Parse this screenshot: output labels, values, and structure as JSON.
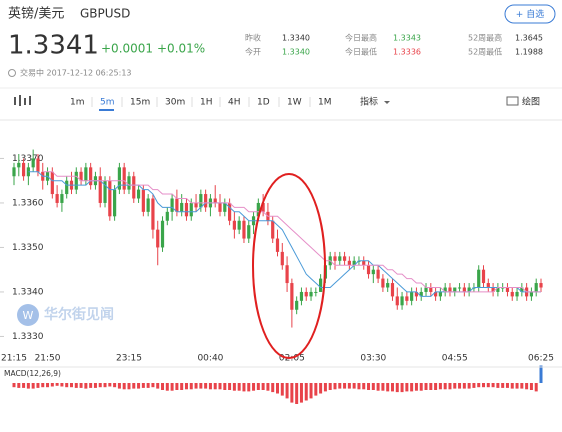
{
  "header": {
    "name": "英镑/美元",
    "symbol": "GBPUSD",
    "watch_button": "+ 自选",
    "price": "1.3341",
    "change": "+0.0001",
    "change_pct": "+0.01%",
    "stats": [
      [
        "昨收",
        "1.3340"
      ],
      [
        "今开",
        "1.3340"
      ],
      [
        "今日最高",
        "1.3343"
      ],
      [
        "今日最低",
        "1.3336"
      ],
      [
        "52周最高",
        "1.3645"
      ],
      [
        "52周最低",
        "1.1988"
      ]
    ],
    "status": "交易中 2017-12-12 06:25:13"
  },
  "toolbar": {
    "intervals": [
      "1m",
      "5m",
      "15m",
      "30m",
      "1H",
      "4H",
      "1D",
      "1W",
      "1M"
    ],
    "selected": "5m",
    "indicators": "指标",
    "draw": "绘图"
  },
  "watermark": "华尔街见闻",
  "chart_data": {
    "type": "candlestick",
    "up_color": "#3aa54a",
    "down_color": "#e8434a",
    "categories": [
      "21:15",
      null,
      null,
      null,
      null,
      null,
      null,
      "21:50",
      null,
      null,
      null,
      null,
      null,
      null,
      null,
      null,
      null,
      null,
      null,
      null,
      null,
      null,
      null,
      null,
      "23:15",
      null,
      null,
      null,
      null,
      null,
      null,
      null,
      null,
      null,
      null,
      null,
      null,
      null,
      null,
      null,
      null,
      "00:40",
      null,
      null,
      null,
      null,
      null,
      null,
      null,
      null,
      null,
      null,
      null,
      null,
      null,
      null,
      null,
      null,
      "02:05",
      null,
      null,
      null,
      null,
      null,
      null,
      null,
      null,
      null,
      null,
      null,
      null,
      null,
      null,
      null,
      null,
      "03:30",
      null,
      null,
      null,
      null,
      null,
      null,
      null,
      null,
      null,
      null,
      null,
      null,
      null,
      null,
      null,
      null,
      "04:55",
      null,
      null,
      null,
      null,
      null,
      null,
      null,
      null,
      null,
      null,
      null,
      null,
      null,
      null,
      null,
      null,
      null,
      "06:25"
    ],
    "ohlc": [
      [
        1.3366,
        1.3369,
        1.3364,
        1.3368
      ],
      [
        1.3368,
        1.3371,
        1.3366,
        1.3369
      ],
      [
        1.3369,
        1.337,
        1.3365,
        1.3366
      ],
      [
        1.3366,
        1.3369,
        1.3364,
        1.3368
      ],
      [
        1.3368,
        1.3372,
        1.3367,
        1.337
      ],
      [
        1.337,
        1.3371,
        1.3366,
        1.3367
      ],
      [
        1.3367,
        1.3369,
        1.3363,
        1.3365
      ],
      [
        1.3365,
        1.3368,
        1.3364,
        1.3367
      ],
      [
        1.3367,
        1.3368,
        1.3361,
        1.3362
      ],
      [
        1.3362,
        1.3364,
        1.3359,
        1.336
      ],
      [
        1.336,
        1.3363,
        1.3358,
        1.3362
      ],
      [
        1.3362,
        1.3366,
        1.3361,
        1.3365
      ],
      [
        1.3365,
        1.3367,
        1.3362,
        1.3363
      ],
      [
        1.3363,
        1.3368,
        1.3362,
        1.3367
      ],
      [
        1.3367,
        1.3368,
        1.3364,
        1.3365
      ],
      [
        1.3365,
        1.3369,
        1.3364,
        1.3368
      ],
      [
        1.3368,
        1.3369,
        1.3363,
        1.3364
      ],
      [
        1.3364,
        1.3367,
        1.3363,
        1.3366
      ],
      [
        1.3366,
        1.3368,
        1.3359,
        1.336
      ],
      [
        1.336,
        1.3366,
        1.3359,
        1.3365
      ],
      [
        1.3365,
        1.3366,
        1.3356,
        1.3357
      ],
      [
        1.3357,
        1.3364,
        1.3356,
        1.3363
      ],
      [
        1.3363,
        1.3369,
        1.3362,
        1.3368
      ],
      [
        1.3368,
        1.3369,
        1.3362,
        1.3363
      ],
      [
        1.3363,
        1.3367,
        1.3362,
        1.3366
      ],
      [
        1.3366,
        1.3367,
        1.336,
        1.3361
      ],
      [
        1.3361,
        1.3364,
        1.336,
        1.3363
      ],
      [
        1.3363,
        1.3364,
        1.3357,
        1.3358
      ],
      [
        1.3358,
        1.3362,
        1.3357,
        1.3361
      ],
      [
        1.3361,
        1.3362,
        1.3352,
        1.3354
      ],
      [
        1.3354,
        1.3356,
        1.3346,
        1.335
      ],
      [
        1.335,
        1.3357,
        1.3349,
        1.3356
      ],
      [
        1.3356,
        1.3359,
        1.3355,
        1.3358
      ],
      [
        1.3358,
        1.3362,
        1.3356,
        1.3361
      ],
      [
        1.3361,
        1.3363,
        1.3357,
        1.3358
      ],
      [
        1.3358,
        1.3362,
        1.3357,
        1.336
      ],
      [
        1.336,
        1.3361,
        1.3356,
        1.3357
      ],
      [
        1.3357,
        1.3361,
        1.3356,
        1.336
      ],
      [
        1.336,
        1.3362,
        1.3358,
        1.3359
      ],
      [
        1.3359,
        1.3363,
        1.3358,
        1.3362
      ],
      [
        1.3362,
        1.3363,
        1.3358,
        1.3359
      ],
      [
        1.3359,
        1.3362,
        1.3357,
        1.3361
      ],
      [
        1.3361,
        1.3364,
        1.3359,
        1.336
      ],
      [
        1.336,
        1.3362,
        1.3357,
        1.3358
      ],
      [
        1.3358,
        1.3361,
        1.3357,
        1.336
      ],
      [
        1.336,
        1.3361,
        1.3355,
        1.3356
      ],
      [
        1.3356,
        1.3358,
        1.3352,
        1.3354
      ],
      [
        1.3354,
        1.3357,
        1.3353,
        1.3356
      ],
      [
        1.3356,
        1.3357,
        1.3351,
        1.3352
      ],
      [
        1.3352,
        1.3356,
        1.3351,
        1.3355
      ],
      [
        1.3355,
        1.3358,
        1.3353,
        1.3357
      ],
      [
        1.3357,
        1.3361,
        1.3356,
        1.336
      ],
      [
        1.336,
        1.3362,
        1.3357,
        1.3358
      ],
      [
        1.3358,
        1.336,
        1.3355,
        1.3356
      ],
      [
        1.3356,
        1.3357,
        1.3351,
        1.3352
      ],
      [
        1.3352,
        1.3354,
        1.3348,
        1.3349
      ],
      [
        1.3349,
        1.3351,
        1.3345,
        1.3346
      ],
      [
        1.3346,
        1.3348,
        1.334,
        1.3342
      ],
      [
        1.3342,
        1.3343,
        1.3332,
        1.3336
      ],
      [
        1.3336,
        1.3339,
        1.3335,
        1.3338
      ],
      [
        1.3338,
        1.3341,
        1.3337,
        1.334
      ],
      [
        1.334,
        1.3341,
        1.3338,
        1.3339
      ],
      [
        1.3339,
        1.3341,
        1.3338,
        1.334
      ],
      [
        1.334,
        1.3341,
        1.3339,
        1.334
      ],
      [
        1.334,
        1.3344,
        1.334,
        1.3343
      ],
      [
        1.3343,
        1.3347,
        1.3342,
        1.3346
      ],
      [
        1.3346,
        1.3349,
        1.3345,
        1.3348
      ],
      [
        1.3348,
        1.3349,
        1.3345,
        1.3347
      ],
      [
        1.3347,
        1.3349,
        1.3346,
        1.3348
      ],
      [
        1.3348,
        1.3349,
        1.3346,
        1.3347
      ],
      [
        1.3347,
        1.3348,
        1.3345,
        1.3346
      ],
      [
        1.3346,
        1.3348,
        1.3345,
        1.3347
      ],
      [
        1.3347,
        1.3348,
        1.3346,
        1.3347
      ],
      [
        1.3347,
        1.3348,
        1.3345,
        1.3346
      ],
      [
        1.3346,
        1.3347,
        1.3343,
        1.3344
      ],
      [
        1.3344,
        1.3346,
        1.3342,
        1.3345
      ],
      [
        1.3345,
        1.3346,
        1.3342,
        1.3343
      ],
      [
        1.3343,
        1.3344,
        1.334,
        1.3341
      ],
      [
        1.3341,
        1.3343,
        1.334,
        1.3342
      ],
      [
        1.3342,
        1.3343,
        1.3338,
        1.3339
      ],
      [
        1.3339,
        1.3341,
        1.3336,
        1.3337
      ],
      [
        1.3337,
        1.334,
        1.3336,
        1.3339
      ],
      [
        1.3339,
        1.334,
        1.3337,
        1.3338
      ],
      [
        1.3338,
        1.3341,
        1.3337,
        1.334
      ],
      [
        1.334,
        1.3341,
        1.3338,
        1.3339
      ],
      [
        1.3339,
        1.3341,
        1.3338,
        1.334
      ],
      [
        1.334,
        1.3342,
        1.3339,
        1.3341
      ],
      [
        1.3341,
        1.3342,
        1.3339,
        1.334
      ],
      [
        1.334,
        1.3341,
        1.3338,
        1.3339
      ],
      [
        1.3339,
        1.3341,
        1.3338,
        1.334
      ],
      [
        1.334,
        1.3342,
        1.3339,
        1.3341
      ],
      [
        1.3341,
        1.3342,
        1.3339,
        1.334
      ],
      [
        1.334,
        1.3341,
        1.3339,
        1.3341
      ],
      [
        1.3341,
        1.3342,
        1.334,
        1.3341
      ],
      [
        1.3341,
        1.3342,
        1.3339,
        1.334
      ],
      [
        1.334,
        1.3342,
        1.3339,
        1.3341
      ],
      [
        1.3341,
        1.3342,
        1.334,
        1.3341
      ],
      [
        1.3341,
        1.3346,
        1.334,
        1.3345
      ],
      [
        1.3345,
        1.3346,
        1.3341,
        1.3342
      ],
      [
        1.3342,
        1.3343,
        1.334,
        1.3341
      ],
      [
        1.3341,
        1.3342,
        1.3339,
        1.334
      ],
      [
        1.334,
        1.3342,
        1.3339,
        1.3341
      ],
      [
        1.3341,
        1.3342,
        1.334,
        1.3341
      ],
      [
        1.3341,
        1.3342,
        1.3339,
        1.334
      ],
      [
        1.334,
        1.3341,
        1.3338,
        1.3339
      ],
      [
        1.3339,
        1.3341,
        1.3338,
        1.334
      ],
      [
        1.334,
        1.3342,
        1.3339,
        1.3341
      ],
      [
        1.3341,
        1.3342,
        1.3338,
        1.3339
      ],
      [
        1.3339,
        1.3341,
        1.3338,
        1.334
      ],
      [
        1.334,
        1.3343,
        1.3339,
        1.3342
      ],
      [
        1.3342,
        1.3343,
        1.334,
        1.3341
      ]
    ],
    "series": [
      {
        "color": "#4a9ad8",
        "values": [
          null,
          null,
          null,
          1.3367,
          1.3367,
          1.3367,
          1.3366,
          1.3366,
          1.3365,
          1.3365,
          1.3365,
          1.3364,
          1.3364,
          1.3364,
          1.3364,
          1.3364,
          1.3365,
          1.3365,
          1.3365,
          1.3364,
          1.3363,
          1.3363,
          1.3364,
          1.3364,
          1.3364,
          1.3364,
          1.3364,
          1.3363,
          1.3363,
          1.3362,
          1.336,
          1.3359,
          1.3359,
          1.3359,
          1.3358,
          1.3358,
          1.3358,
          1.3358,
          1.3358,
          1.3359,
          1.336,
          1.336,
          1.336,
          1.336,
          1.336,
          1.3359,
          1.3358,
          1.3358,
          1.3357,
          1.3356,
          1.3356,
          1.3356,
          1.3356,
          1.3356,
          1.3356,
          1.3355,
          1.3354,
          1.3352,
          1.335,
          1.3348,
          1.3346,
          1.3344,
          1.3343,
          1.3342,
          1.3341,
          1.3341,
          1.3341,
          1.3342,
          1.3343,
          1.3344,
          1.3345,
          1.3346,
          1.3347,
          1.3347,
          1.3347,
          1.3346,
          1.3346,
          1.3345,
          1.3344,
          1.3343,
          1.3342,
          1.3341,
          1.334,
          1.334,
          1.334,
          1.3339,
          1.3339,
          1.3339,
          1.334,
          1.334,
          1.334,
          1.334,
          1.334,
          1.334,
          1.334,
          1.334,
          1.3341,
          1.3341,
          1.3341,
          1.3341,
          1.3341,
          1.3341,
          1.3341,
          1.3341,
          1.3341,
          1.3341,
          1.334,
          1.334,
          1.334,
          1.334,
          1.334
        ]
      },
      {
        "color": "#e58fc8",
        "values": [
          null,
          null,
          null,
          null,
          null,
          null,
          1.3367,
          1.3367,
          1.3367,
          1.3366,
          1.3366,
          1.3366,
          1.3366,
          1.3366,
          1.3365,
          1.3365,
          1.3365,
          1.3365,
          1.3365,
          1.3365,
          1.3365,
          1.3365,
          1.3365,
          1.3365,
          1.3364,
          1.3364,
          1.3364,
          1.3364,
          1.3364,
          1.3363,
          1.3363,
          1.3362,
          1.3362,
          1.3362,
          1.3361,
          1.3361,
          1.3361,
          1.336,
          1.336,
          1.336,
          1.336,
          1.336,
          1.336,
          1.336,
          1.336,
          1.336,
          1.3359,
          1.3359,
          1.3359,
          1.3358,
          1.3358,
          1.3358,
          1.3358,
          1.3357,
          1.3357,
          1.3357,
          1.3356,
          1.3355,
          1.3354,
          1.3353,
          1.3352,
          1.3351,
          1.335,
          1.3349,
          1.3348,
          1.3347,
          1.3347,
          1.3346,
          1.3346,
          1.3346,
          1.3346,
          1.3346,
          1.3346,
          1.3346,
          1.3346,
          1.3346,
          1.3346,
          1.3346,
          1.3345,
          1.3345,
          1.3344,
          1.3344,
          1.3343,
          1.3343,
          1.3342,
          1.3342,
          1.3341,
          1.3341,
          1.3341,
          1.3341,
          1.334,
          1.334,
          1.334,
          1.334,
          1.334,
          1.334,
          1.334,
          1.334,
          1.334,
          1.334,
          1.334,
          1.3341,
          1.3341,
          1.3341,
          1.3341,
          1.3341,
          1.3341,
          1.334,
          1.334,
          1.334,
          1.334
        ]
      }
    ],
    "ylim": [
      1.3327,
      1.3377
    ],
    "yticks": [
      {
        "value": 1.337,
        "label": "1.3370"
      },
      {
        "value": 1.336,
        "label": "1.3360"
      },
      {
        "value": 1.335,
        "label": "1.3350"
      },
      {
        "value": 1.334,
        "label": "1.3340"
      },
      {
        "value": 1.333,
        "label": "1.3330"
      }
    ],
    "grid": false,
    "macd_label": "MACD(12,26,9)",
    "macd_hist": [
      0.6,
      0.7,
      0.7,
      0.8,
      0.8,
      0.7,
      0.6,
      0.6,
      0.5,
      0.4,
      0.5,
      0.6,
      0.6,
      0.7,
      0.7,
      0.8,
      0.7,
      0.7,
      0.6,
      0.6,
      0.5,
      0.6,
      0.8,
      0.9,
      0.9,
      0.8,
      0.8,
      0.7,
      0.7,
      0.6,
      0.8,
      1.0,
      1.1,
      1.1,
      1.0,
      1.0,
      0.9,
      0.9,
      0.8,
      0.8,
      0.8,
      0.9,
      0.9,
      0.9,
      1.0,
      1.0,
      1.1,
      1.1,
      1.2,
      1.2,
      1.1,
      1.0,
      1.0,
      1.1,
      1.3,
      1.5,
      1.8,
      2.2,
      2.8,
      3.0,
      2.8,
      2.5,
      2.2,
      1.8,
      1.5,
      1.2,
      1.0,
      0.9,
      0.8,
      0.8,
      0.8,
      0.8,
      0.9,
      0.9,
      1.0,
      1.0,
      1.1,
      1.1,
      1.2,
      1.2,
      1.3,
      1.3,
      1.2,
      1.2,
      1.1,
      1.1,
      1.0,
      1.0,
      1.0,
      0.9,
      0.9,
      0.9,
      0.8,
      0.8,
      0.8,
      0.8,
      0.7,
      0.6,
      0.6,
      0.6,
      0.6,
      0.7,
      0.7,
      0.7,
      0.8,
      0.8,
      0.8,
      0.9,
      1.0,
      1.2,
      -2.5
    ]
  }
}
